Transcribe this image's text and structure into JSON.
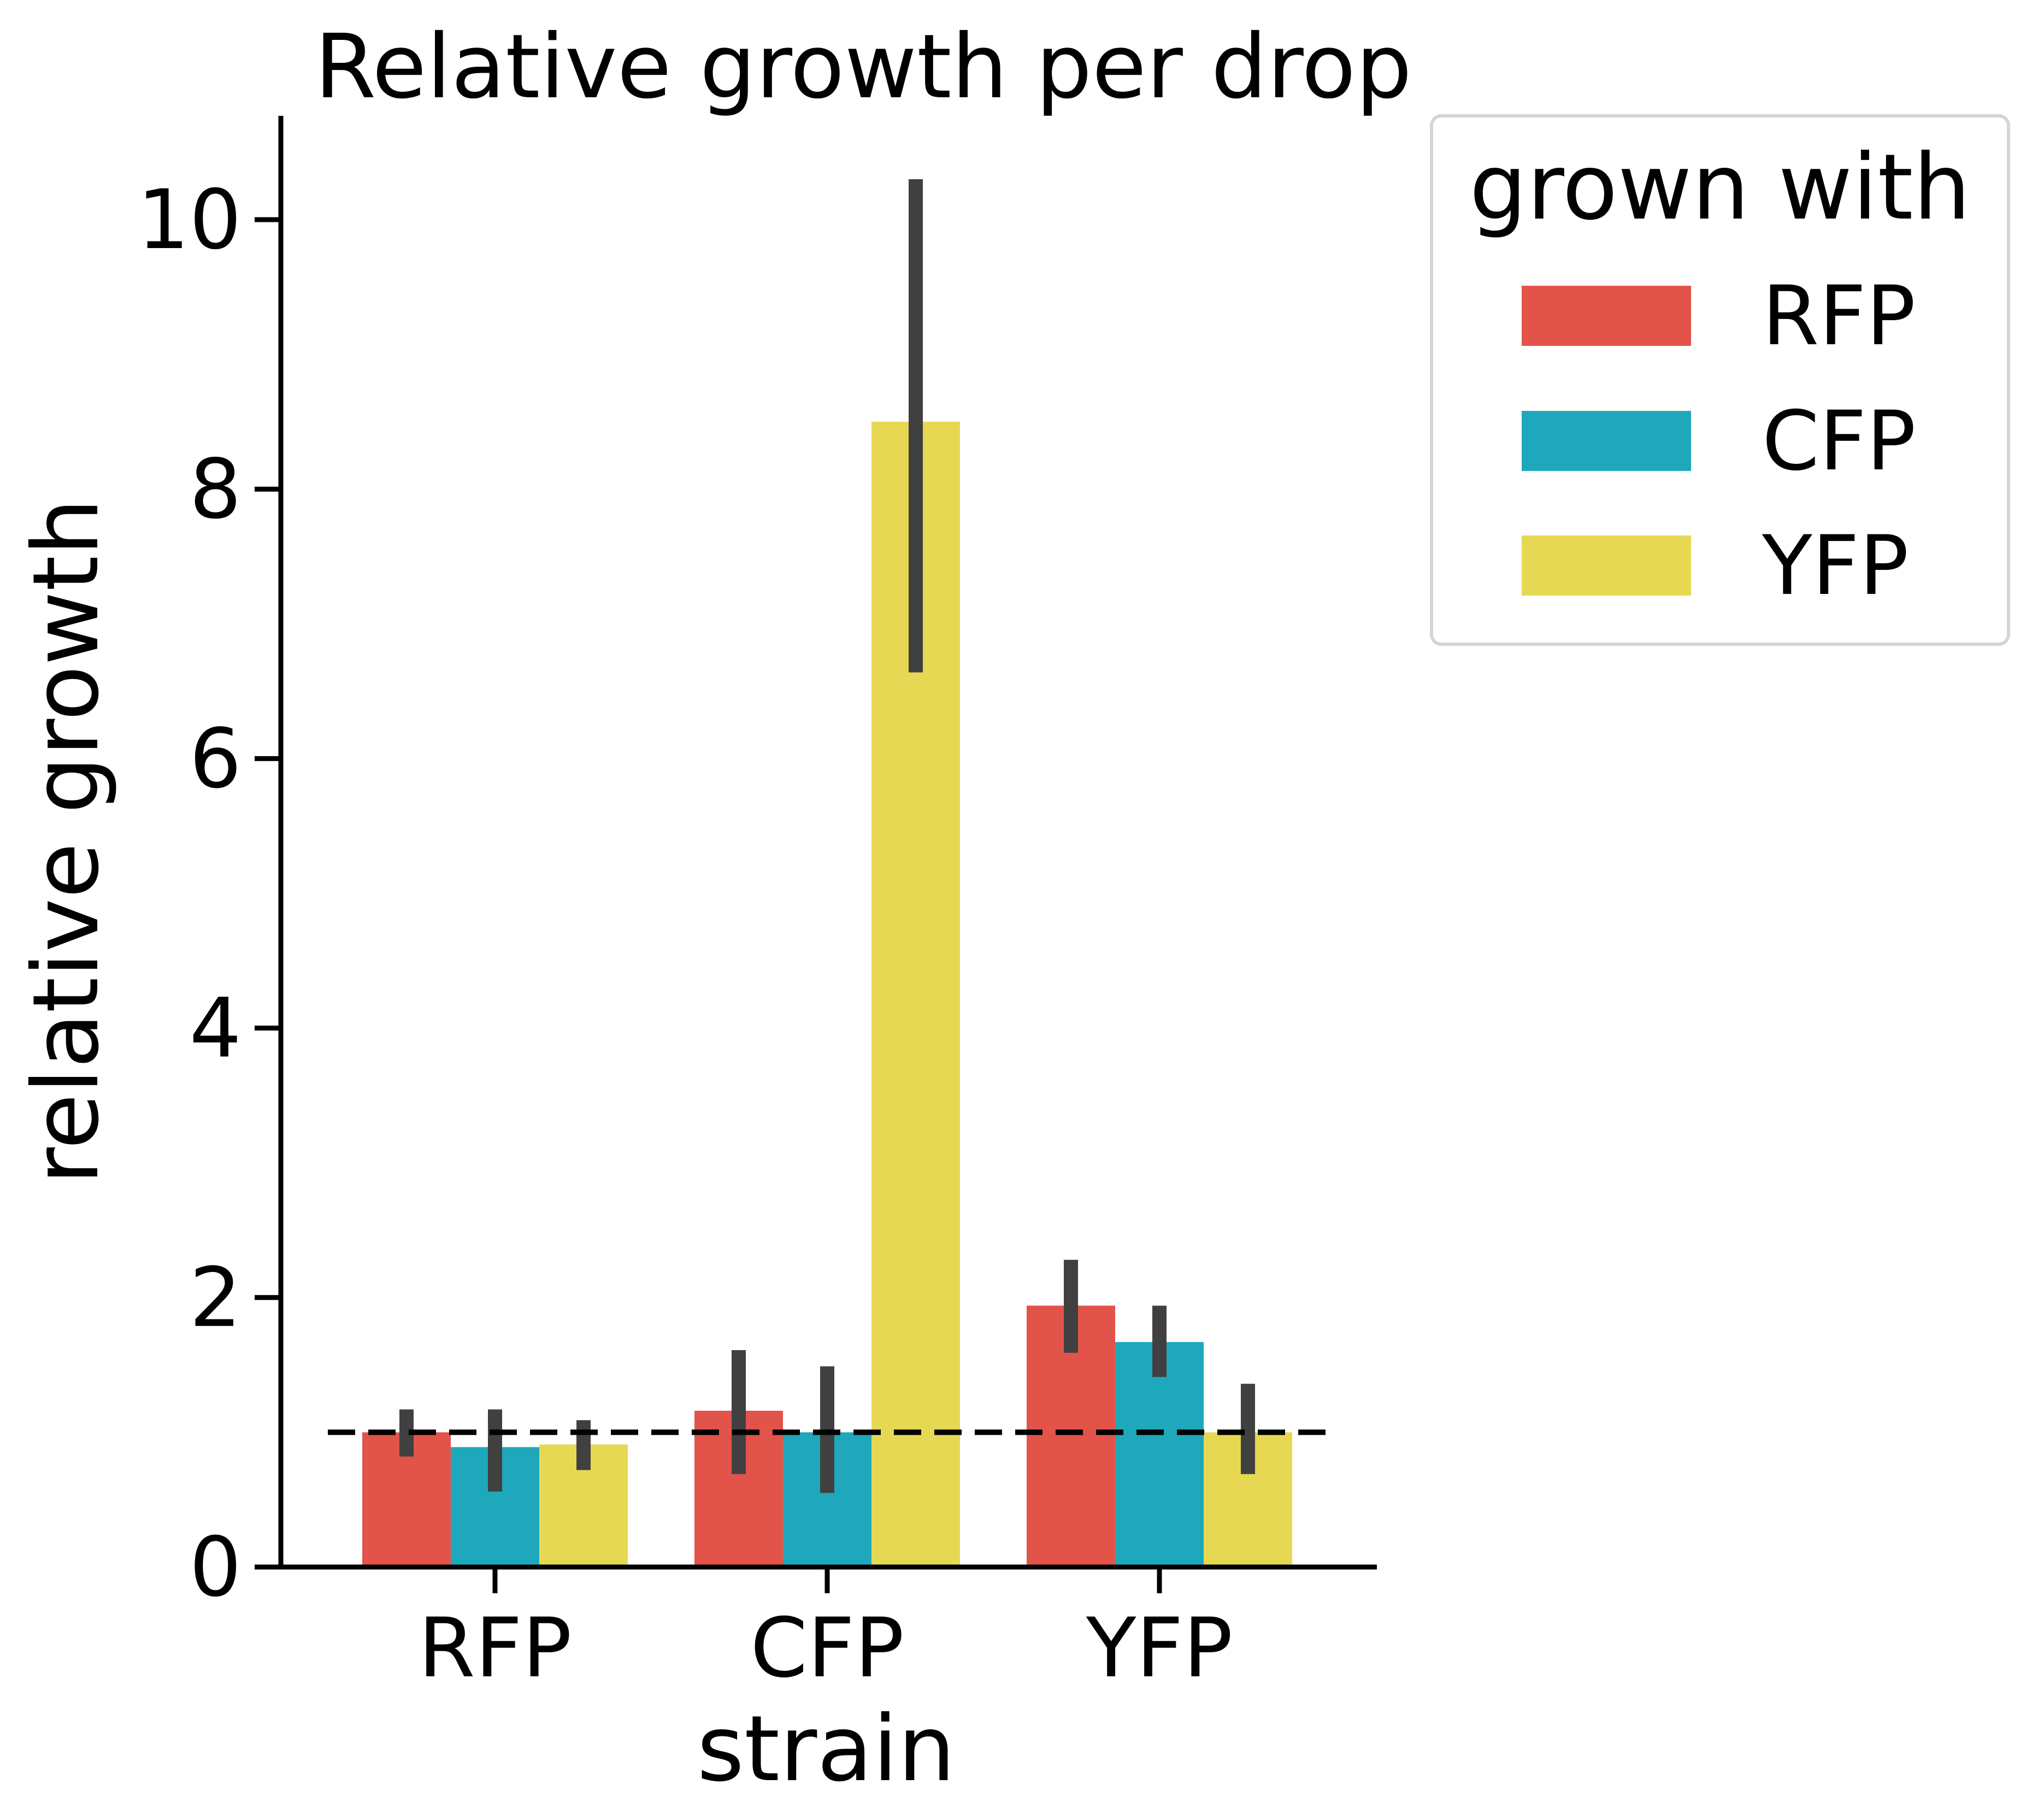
{
  "chart_data": {
    "type": "bar",
    "title": "Relative growth per drop",
    "xlabel": "strain",
    "ylabel": "relative growth",
    "categories": [
      "RFP",
      "CFP",
      "YFP"
    ],
    "ylim": [
      0,
      10.8
    ],
    "yticks": [
      0,
      2,
      4,
      6,
      8,
      10
    ],
    "reference_line": {
      "y": 1.0,
      "style": "dashed"
    },
    "legend": {
      "title": "grown with",
      "placement": "outside-top-right"
    },
    "grid": false,
    "series": [
      {
        "name": "RFP",
        "color": "#e2534a",
        "values": [
          1.0,
          1.16,
          1.94
        ],
        "err_low": [
          0.82,
          0.69,
          1.59
        ],
        "err_high": [
          1.17,
          1.61,
          2.28
        ]
      },
      {
        "name": "CFP",
        "color": "#1fa8bb",
        "values": [
          0.89,
          1.0,
          1.67
        ],
        "err_low": [
          0.56,
          0.55,
          1.41
        ],
        "err_high": [
          1.17,
          1.49,
          1.94
        ]
      },
      {
        "name": "YFP",
        "color": "#e7d853",
        "values": [
          0.91,
          8.5,
          1.0
        ],
        "err_low": [
          0.72,
          6.64,
          0.69
        ],
        "err_high": [
          1.09,
          10.3,
          1.36
        ]
      }
    ]
  }
}
